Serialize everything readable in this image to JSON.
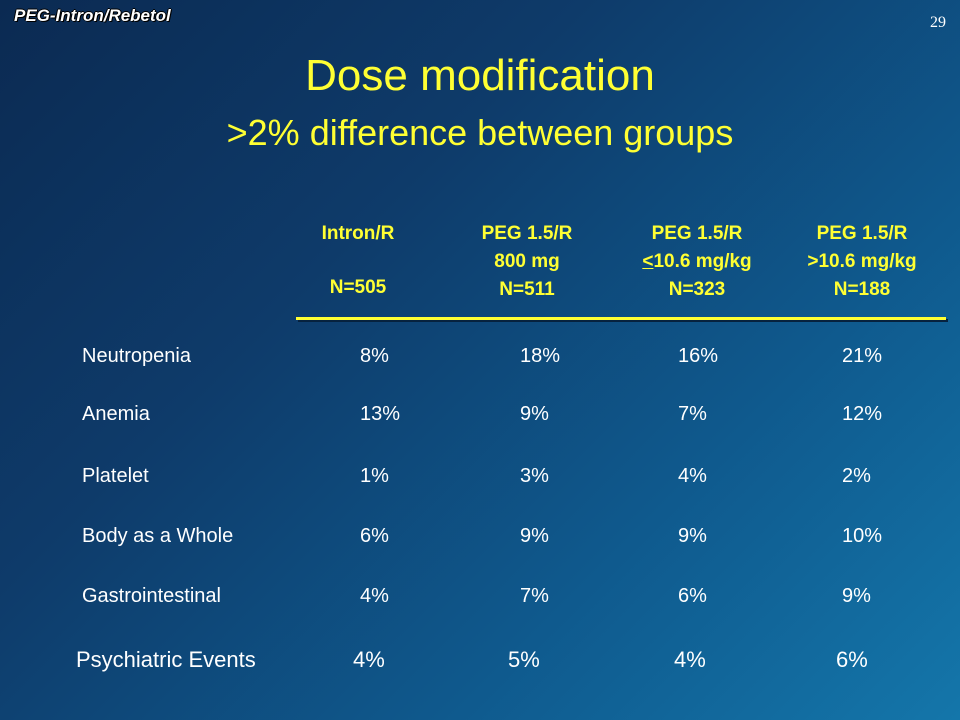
{
  "header": {
    "brand": "PEG-Intron/Rebetol",
    "slide_number": "29"
  },
  "title": "Dose modification",
  "subtitle": ">2% difference between groups",
  "columns": [
    {
      "line1": "Intron/R",
      "line2": "",
      "line3": "N=505"
    },
    {
      "line1": "PEG 1.5/R",
      "line2": "800 mg",
      "line3": "N=511"
    },
    {
      "line1": "PEG 1.5/R",
      "line2_symbol": "<",
      "line2_rest": "10.6 mg/kg",
      "line3": "N=323"
    },
    {
      "line1": "PEG 1.5/R",
      "line2": ">10.6 mg/kg",
      "line3": "N=188"
    }
  ],
  "rows": [
    {
      "label": "Neutropenia",
      "values": [
        "8%",
        "18%",
        "16%",
        "21%"
      ]
    },
    {
      "label": "Anemia",
      "values": [
        "13%",
        "9%",
        "7%",
        "12%"
      ]
    },
    {
      "label": "Platelet",
      "values": [
        "1%",
        "3%",
        "4%",
        "2%"
      ]
    },
    {
      "label": "Body as a Whole",
      "values": [
        "6%",
        "9%",
        "9%",
        "10%"
      ]
    },
    {
      "label": "Gastrointestinal",
      "values": [
        "4%",
        "7%",
        "6%",
        "9%"
      ]
    },
    {
      "label": "Psychiatric Events",
      "values": [
        "4%",
        "5%",
        "4%",
        "6%"
      ]
    }
  ],
  "colors": {
    "title": "#ffff33",
    "text": "#ffffff",
    "background_dark": "#0b2a52",
    "background_light": "#1476aa"
  }
}
